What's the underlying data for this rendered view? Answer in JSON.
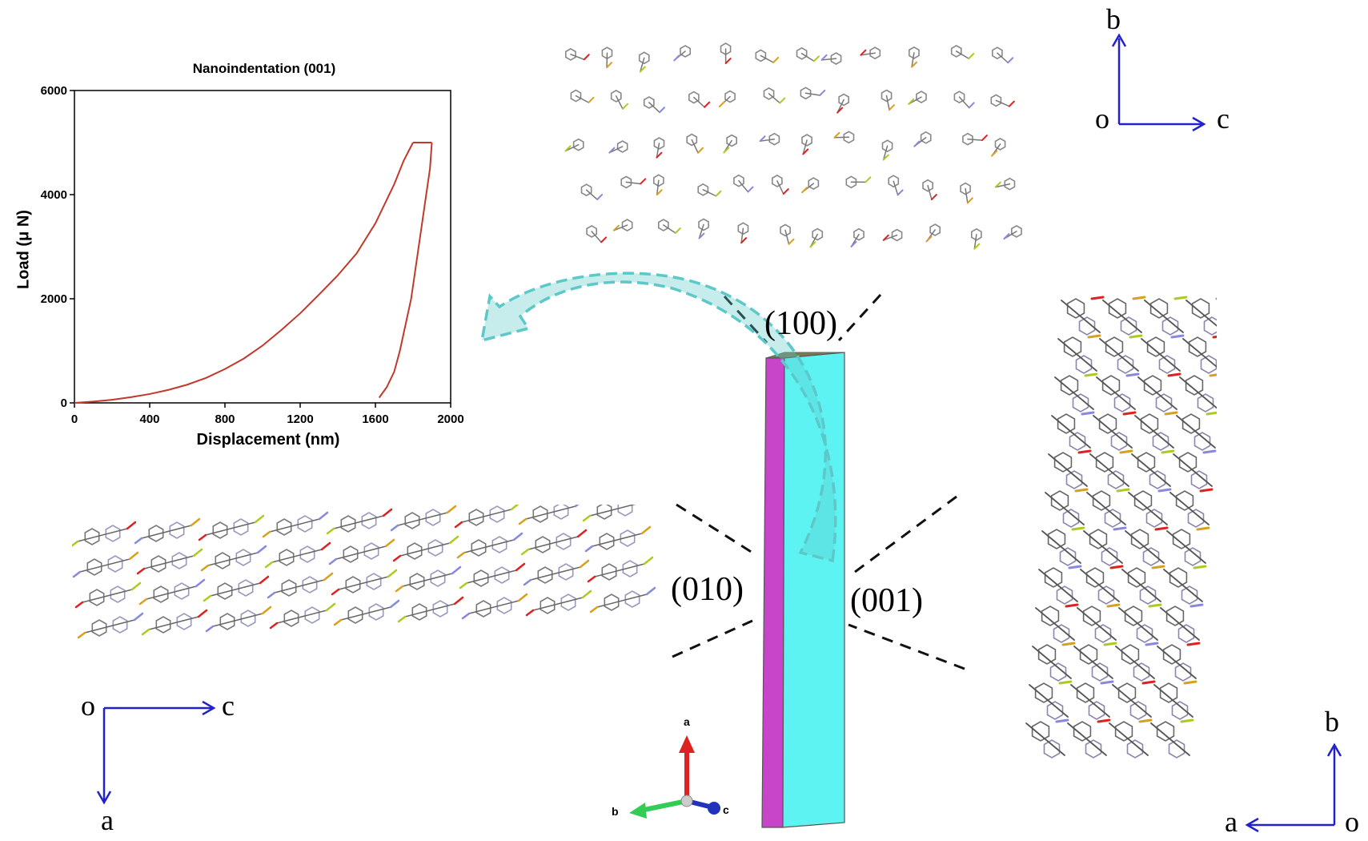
{
  "chart_data": {
    "type": "line",
    "title": "Nanoindentation (001)",
    "xlabel": "Displacement (nm)",
    "ylabel": "Load (μ N)",
    "xlim": [
      0,
      2000
    ],
    "ylim": [
      0,
      6000
    ],
    "xticks": [
      "0",
      "400",
      "800",
      "1200",
      "1600",
      "2000"
    ],
    "yticks": [
      "0",
      "2000",
      "4000",
      "6000"
    ],
    "series": [
      {
        "color": "#c0392b",
        "loading": [
          [
            0,
            0
          ],
          [
            100,
            25
          ],
          [
            200,
            60
          ],
          [
            300,
            110
          ],
          [
            400,
            170
          ],
          [
            500,
            250
          ],
          [
            600,
            350
          ],
          [
            700,
            480
          ],
          [
            800,
            650
          ],
          [
            900,
            850
          ],
          [
            1000,
            1100
          ],
          [
            1100,
            1400
          ],
          [
            1200,
            1720
          ],
          [
            1300,
            2080
          ],
          [
            1400,
            2450
          ],
          [
            1500,
            2870
          ],
          [
            1600,
            3450
          ],
          [
            1700,
            4200
          ],
          [
            1750,
            4650
          ],
          [
            1800,
            5000
          ]
        ],
        "hold": [
          [
            1800,
            5000
          ],
          [
            1900,
            5000
          ]
        ],
        "unloading": [
          [
            1900,
            5000
          ],
          [
            1890,
            4500
          ],
          [
            1870,
            4000
          ],
          [
            1850,
            3500
          ],
          [
            1830,
            3000
          ],
          [
            1810,
            2500
          ],
          [
            1790,
            2000
          ],
          [
            1760,
            1500
          ],
          [
            1730,
            1000
          ],
          [
            1700,
            600
          ],
          [
            1660,
            300
          ],
          [
            1620,
            100
          ]
        ]
      }
    ]
  },
  "faces": {
    "f100": "(100)",
    "f010": "(010)",
    "f001": "(001)"
  },
  "axes_sets": {
    "top": {
      "up": "b",
      "right": "c",
      "origin": "o"
    },
    "left": {
      "right": "c",
      "down": "a",
      "origin": "o"
    },
    "right": {
      "up": "b",
      "left": "a",
      "origin": "o"
    }
  },
  "triad": {
    "a": "a",
    "b": "b",
    "c": "c"
  },
  "colors": {
    "cyan_face": "#5ef3f3",
    "magenta_face": "#c844c8",
    "top_face": "#7a7a50",
    "arrow": "#5cc8c8",
    "axis_blue": "#2222cc"
  }
}
